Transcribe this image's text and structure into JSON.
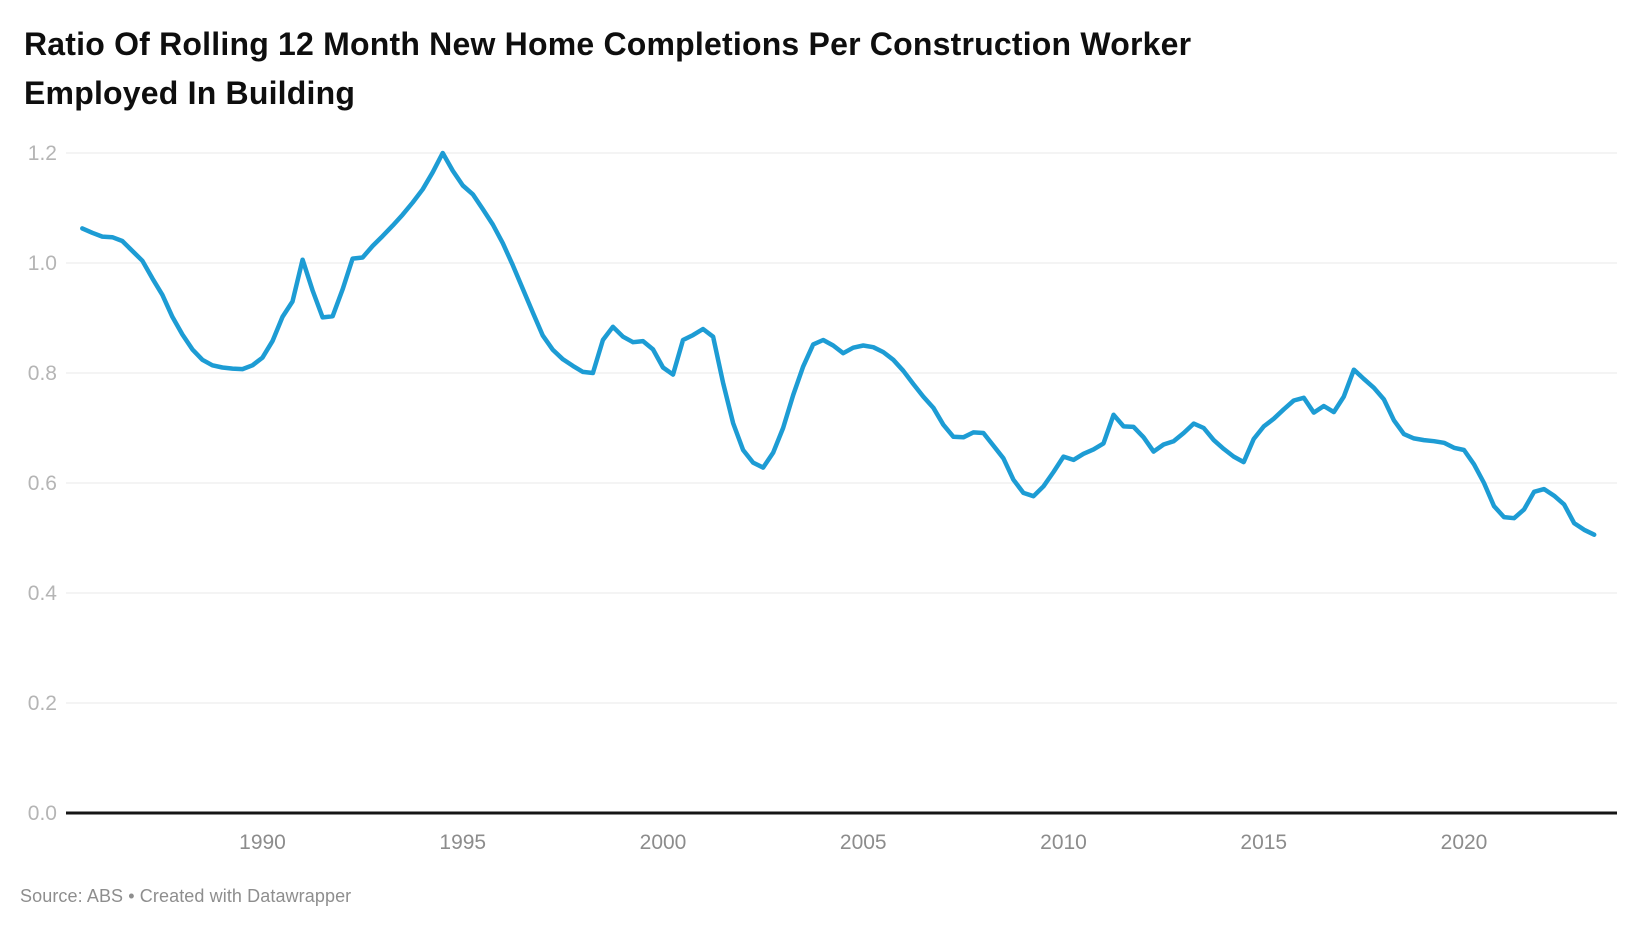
{
  "title": {
    "full": "Ratio Of Rolling 12 Month New Home Completions Per Construction Worker Employed In Building",
    "lines": [
      "Ratio Of Rolling 12 Month New Home Completions Per Construction Worker",
      "Employed In Building"
    ]
  },
  "footer": {
    "source_label": "Source: ABS",
    "separator": " • ",
    "credit": "Created with Datawrapper"
  },
  "chart_data": {
    "type": "line",
    "title": "Ratio Of Rolling 12 Month New Home Completions Per Construction Worker Employed In Building",
    "x_ticks": [
      1990,
      1995,
      2000,
      2005,
      2010,
      2015,
      2020
    ],
    "y_ticks": [
      0.0,
      0.2,
      0.4,
      0.6,
      0.8,
      1.0,
      1.2
    ],
    "ylim": [
      0.0,
      1.2
    ],
    "xlim": [
      1985.3,
      2023.5
    ],
    "grid": "horizontal",
    "legend": false,
    "line_color": "#1d9cd4",
    "axis_color": "#161616",
    "grid_color": "#e9e9e9",
    "x": [
      1985.5,
      1985.75,
      1986,
      1986.25,
      1986.5,
      1986.75,
      1987,
      1987.25,
      1987.5,
      1987.75,
      1988,
      1988.25,
      1988.5,
      1988.75,
      1989,
      1989.25,
      1989.5,
      1989.75,
      1990,
      1990.25,
      1990.5,
      1990.75,
      1991,
      1991.25,
      1991.5,
      1991.75,
      1992,
      1992.25,
      1992.5,
      1992.75,
      1993,
      1993.25,
      1993.5,
      1993.75,
      1994,
      1994.25,
      1994.5,
      1994.75,
      1995,
      1995.25,
      1995.5,
      1995.75,
      1996,
      1996.25,
      1996.5,
      1996.75,
      1997,
      1997.25,
      1997.5,
      1997.75,
      1998,
      1998.25,
      1998.5,
      1998.75,
      1999,
      1999.25,
      1999.5,
      1999.75,
      2000,
      2000.25,
      2000.5,
      2000.75,
      2001,
      2001.25,
      2001.5,
      2001.75,
      2002,
      2002.25,
      2002.5,
      2002.75,
      2003,
      2003.25,
      2003.5,
      2003.75,
      2004,
      2004.25,
      2004.5,
      2004.75,
      2005,
      2005.25,
      2005.5,
      2005.75,
      2006,
      2006.25,
      2006.5,
      2006.75,
      2007,
      2007.25,
      2007.5,
      2007.75,
      2008,
      2008.25,
      2008.5,
      2008.75,
      2009,
      2009.25,
      2009.5,
      2009.75,
      2010,
      2010.25,
      2010.5,
      2010.75,
      2011,
      2011.25,
      2011.5,
      2011.75,
      2012,
      2012.25,
      2012.5,
      2012.75,
      2013,
      2013.25,
      2013.5,
      2013.75,
      2014,
      2014.25,
      2014.5,
      2014.75,
      2015,
      2015.25,
      2015.5,
      2015.75,
      2016,
      2016.25,
      2016.5,
      2016.75,
      2017,
      2017.25,
      2017.5,
      2017.75,
      2018,
      2018.25,
      2018.5,
      2018.75,
      2019,
      2019.25,
      2019.5,
      2019.75,
      2020,
      2020.25,
      2020.5,
      2020.75,
      2021,
      2021.25,
      2021.5,
      2021.75,
      2022,
      2022.25,
      2022.5,
      2022.75,
      2023,
      2023.25
    ],
    "values": [
      1.063,
      1.055,
      1.048,
      1.047,
      1.04,
      1.022,
      1.004,
      0.972,
      0.942,
      0.902,
      0.87,
      0.843,
      0.824,
      0.814,
      0.81,
      0.808,
      0.807,
      0.814,
      0.828,
      0.858,
      0.902,
      0.93,
      1.006,
      0.95,
      0.901,
      0.903,
      0.952,
      1.008,
      1.01,
      1.031,
      1.049,
      1.068,
      1.088,
      1.11,
      1.134,
      1.165,
      1.2,
      1.168,
      1.141,
      1.125,
      1.098,
      1.07,
      1.036,
      0.996,
      0.953,
      0.91,
      0.868,
      0.842,
      0.825,
      0.813,
      0.802,
      0.8,
      0.86,
      0.884,
      0.866,
      0.856,
      0.858,
      0.843,
      0.81,
      0.797,
      0.86,
      0.869,
      0.88,
      0.866,
      0.782,
      0.709,
      0.66,
      0.637,
      0.628,
      0.655,
      0.7,
      0.76,
      0.812,
      0.852,
      0.86,
      0.85,
      0.836,
      0.846,
      0.85,
      0.847,
      0.838,
      0.824,
      0.804,
      0.78,
      0.757,
      0.737,
      0.706,
      0.684,
      0.683,
      0.692,
      0.691,
      0.668,
      0.645,
      0.606,
      0.582,
      0.576,
      0.594,
      0.62,
      0.648,
      0.642,
      0.653,
      0.661,
      0.672,
      0.724,
      0.703,
      0.702,
      0.683,
      0.657,
      0.67,
      0.676,
      0.691,
      0.708,
      0.7,
      0.678,
      0.662,
      0.648,
      0.638,
      0.68,
      0.703,
      0.717,
      0.734,
      0.75,
      0.755,
      0.728,
      0.74,
      0.729,
      0.757,
      0.806,
      0.789,
      0.773,
      0.752,
      0.714,
      0.689,
      0.681,
      0.678,
      0.676,
      0.673,
      0.664,
      0.66,
      0.634,
      0.6,
      0.558,
      0.538,
      0.536,
      0.552,
      0.584,
      0.589,
      0.577,
      0.561,
      0.527,
      0.515,
      0.506
    ]
  }
}
